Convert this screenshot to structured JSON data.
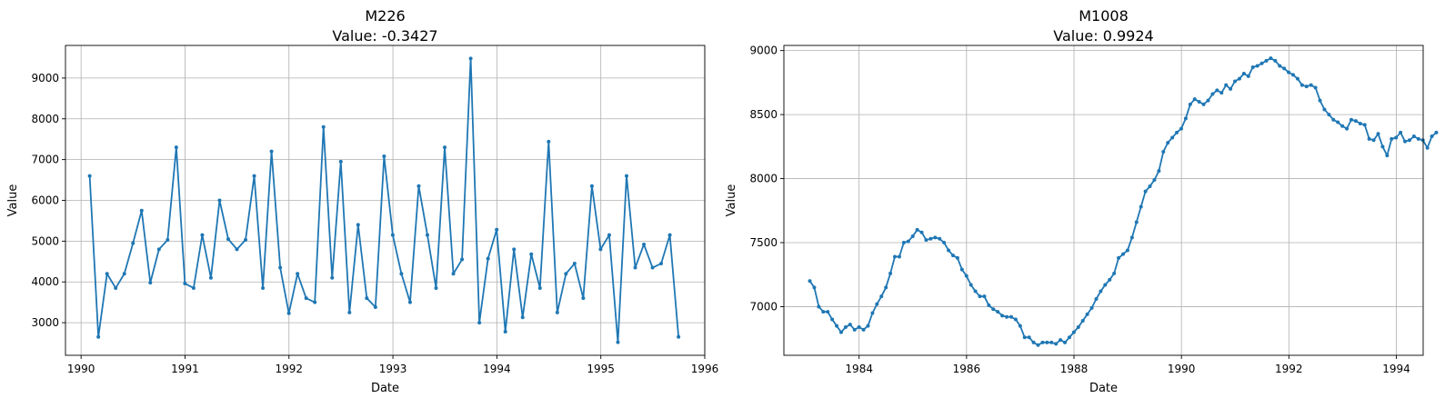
{
  "chart_data": [
    {
      "type": "line",
      "title": "M226",
      "subtitle": "Value: -0.3427",
      "xlabel": "Date",
      "ylabel": "Value",
      "grid": true,
      "color": "#1f77b4",
      "xlim": [
        1989.85,
        1996.0
      ],
      "ylim": [
        2200,
        9800
      ],
      "x_ticks": [
        1990,
        1991,
        1992,
        1993,
        1994,
        1995,
        1996
      ],
      "x_tick_labels": [
        "1990",
        "1991",
        "1992",
        "1993",
        "1994",
        "1995",
        "1996"
      ],
      "y_ticks": [
        3000,
        4000,
        5000,
        6000,
        7000,
        8000,
        9000
      ],
      "y_tick_labels": [
        "3000",
        "4000",
        "5000",
        "6000",
        "7000",
        "8000",
        "9000"
      ],
      "x_start": 1990.083,
      "x_step": 0.0833,
      "values": [
        6600,
        2650,
        4200,
        3850,
        4200,
        4950,
        5750,
        3980,
        4800,
        5030,
        7300,
        3960,
        3850,
        5150,
        4100,
        6000,
        5050,
        4800,
        5030,
        6600,
        3850,
        7200,
        4350,
        3230,
        4200,
        3600,
        3500,
        7800,
        4100,
        6950,
        3250,
        5400,
        3600,
        3380,
        7080,
        5150,
        4200,
        3500,
        6350,
        5150,
        3850,
        7300,
        4200,
        4550,
        9480,
        3000,
        4570,
        5280,
        2780,
        4800,
        3130,
        4680,
        3850,
        7440,
        3250,
        4200,
        4450,
        3600,
        6350,
        4800,
        5150,
        2520,
        6600,
        4350,
        4920,
        4350,
        4450,
        5150,
        2650
      ]
    },
    {
      "type": "line",
      "title": "M1008",
      "subtitle": "Value: 0.9924",
      "xlabel": "Date",
      "ylabel": "Value",
      "grid": true,
      "color": "#1f77b4",
      "xlim": [
        1982.6,
        1994.5
      ],
      "ylim": [
        6620,
        9040
      ],
      "x_ticks": [
        1984,
        1986,
        1988,
        1990,
        1992,
        1994
      ],
      "x_tick_labels": [
        "1984",
        "1986",
        "1988",
        "1990",
        "1992",
        "1994"
      ],
      "y_ticks": [
        7000,
        7500,
        8000,
        8500,
        9000
      ],
      "y_tick_labels": [
        "7000",
        "7500",
        "8000",
        "8500",
        "9000"
      ],
      "x_start": 1983.083,
      "x_step": 0.0833,
      "values": [
        7200,
        7150,
        7000,
        6960,
        6960,
        6900,
        6850,
        6800,
        6840,
        6860,
        6820,
        6840,
        6820,
        6850,
        6950,
        7020,
        7080,
        7150,
        7260,
        7390,
        7390,
        7500,
        7510,
        7550,
        7600,
        7580,
        7520,
        7530,
        7540,
        7530,
        7500,
        7440,
        7400,
        7380,
        7290,
        7240,
        7170,
        7120,
        7080,
        7080,
        7010,
        6980,
        6960,
        6930,
        6920,
        6920,
        6900,
        6850,
        6760,
        6760,
        6720,
        6700,
        6720,
        6720,
        6720,
        6710,
        6740,
        6720,
        6760,
        6800,
        6840,
        6890,
        6940,
        6990,
        7060,
        7120,
        7170,
        7210,
        7260,
        7380,
        7410,
        7440,
        7540,
        7660,
        7780,
        7900,
        7940,
        7990,
        8060,
        8210,
        8280,
        8320,
        8360,
        8390,
        8470,
        8580,
        8620,
        8600,
        8580,
        8610,
        8660,
        8690,
        8670,
        8730,
        8700,
        8760,
        8780,
        8820,
        8800,
        8870,
        8880,
        8900,
        8920,
        8940,
        8920,
        8880,
        8860,
        8830,
        8810,
        8780,
        8730,
        8720,
        8730,
        8710,
        8610,
        8540,
        8500,
        8460,
        8440,
        8410,
        8390,
        8460,
        8450,
        8430,
        8420,
        8310,
        8300,
        8350,
        8250,
        8180,
        8310,
        8320,
        8360,
        8290,
        8300,
        8330,
        8310,
        8300,
        8240,
        8330,
        8360
      ]
    }
  ]
}
